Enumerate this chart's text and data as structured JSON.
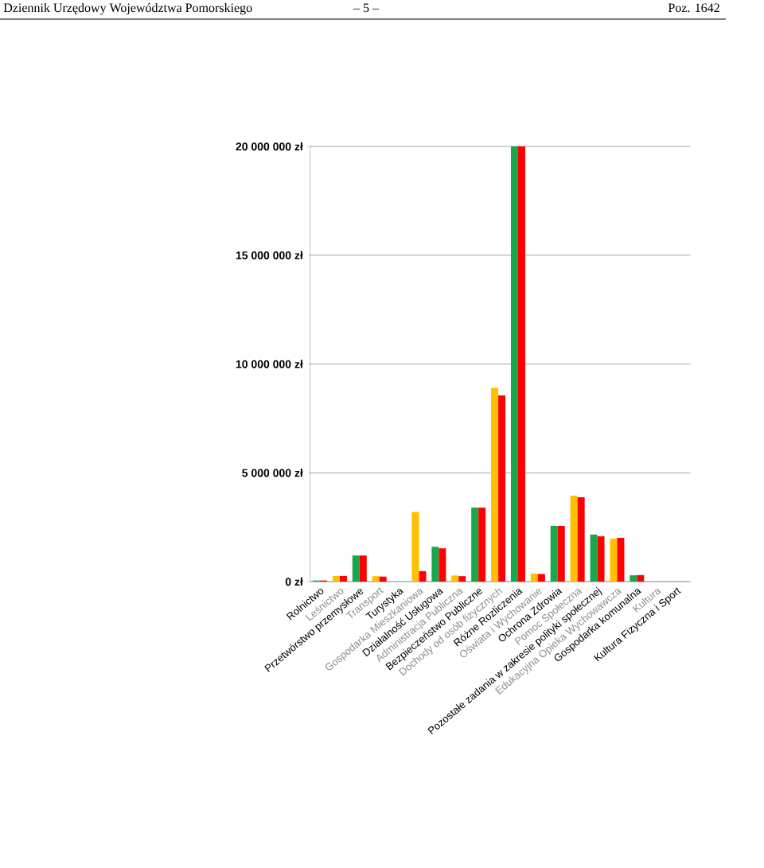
{
  "chart_data": {
    "type": "bar",
    "annotations": [
      "Dziennik Urzędowy Województwa Pomorskiego",
      "– 5 –",
      "Poz. 1642"
    ],
    "categories": [
      "Rolnictwo",
      "Leśnictwo",
      "Przetwórstwo przemysłowe",
      "Transport",
      "Turystyka",
      "Gospodarka Mieszkaniowa",
      "Działalność Usługowa",
      "Administracja Publiczna",
      "Bezpieczeństwo Publiczne",
      "Dochody od osób fizycznych",
      "Różne Rozliczenia",
      "Oświata i Wychowanie",
      "Ochrona Zdrowia",
      "Pomoc Społeczna",
      "Pozostałe zadania w zakresie polityki społecznej",
      "Edukacyjna Opieka Wychowawcza",
      "Gospodarka komunalna",
      "Kultura",
      "Kultura Fizyczna i Sport"
    ],
    "series": [
      {
        "colors": [
          "#1aa64a",
          "#ffc000",
          "#1aa64a",
          "#ffc000",
          "#1aa64a",
          "#ffc000",
          "#1aa64a",
          "#ffc000",
          "#1aa64a",
          "#ffc000",
          "#1aa64a",
          "#ffc000",
          "#1aa64a",
          "#ffc000",
          "#1aa64a",
          "#ffc000",
          "#1aa64a",
          "#ffc000",
          "#1aa64a"
        ],
        "values": [
          50000,
          260000,
          1200000,
          250000,
          0,
          3200000,
          1600000,
          280000,
          3400000,
          8900000,
          20000000,
          370000,
          2560000,
          3950000,
          2160000,
          1970000,
          290000,
          0,
          0
        ]
      },
      {
        "color": "#ff0000",
        "values": [
          50000,
          260000,
          1200000,
          230000,
          0,
          480000,
          1530000,
          250000,
          3400000,
          8560000,
          20000000,
          350000,
          2560000,
          3880000,
          2080000,
          2010000,
          300000,
          0,
          0
        ]
      }
    ],
    "ylim": [
      0,
      20000000
    ],
    "yticks": [
      {
        "value": 0,
        "label": "0 zł"
      },
      {
        "value": 5000000,
        "label": "5 000 000 zł"
      },
      {
        "value": 10000000,
        "label": "10 000 000 zł"
      },
      {
        "value": 15000000,
        "label": "15 000 000 zł"
      },
      {
        "value": 20000000,
        "label": "20 000 000 zł"
      }
    ],
    "grid": "y"
  }
}
